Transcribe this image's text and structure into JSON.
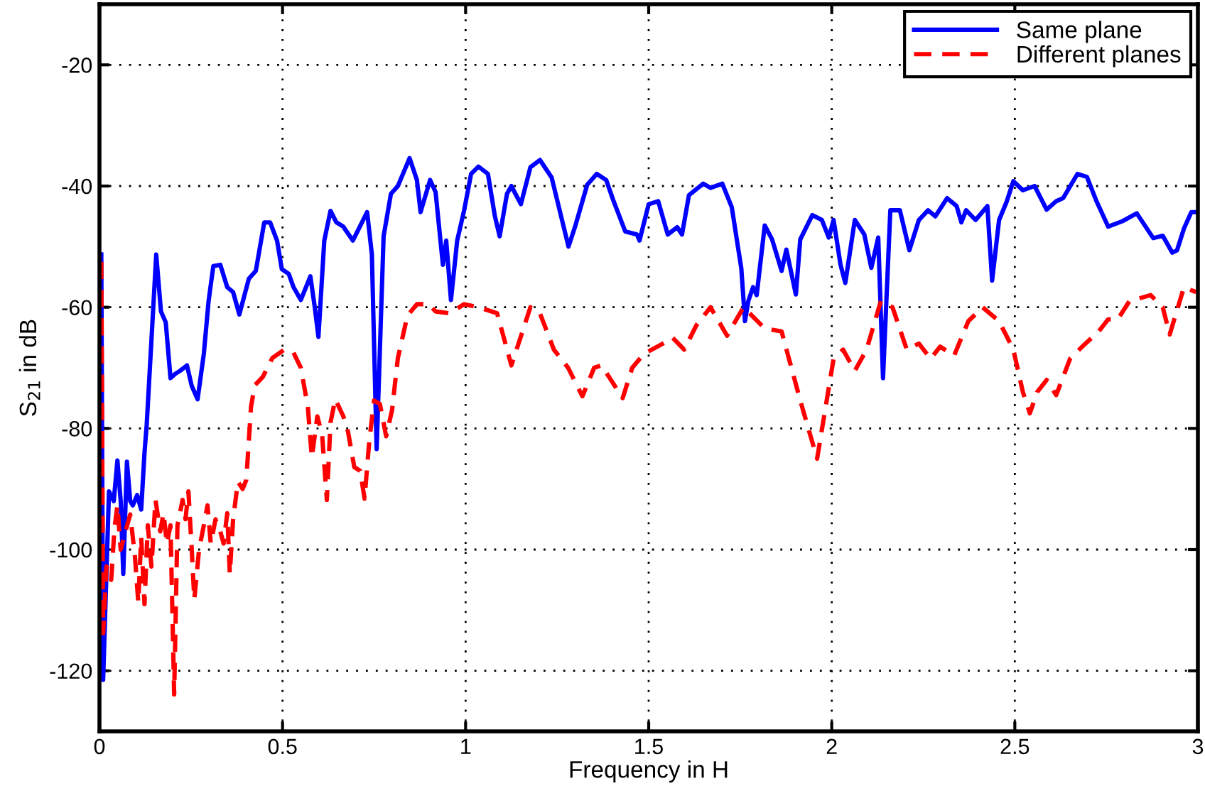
{
  "chart_data": {
    "type": "line",
    "xlabel": "Frequency in H",
    "ylabel": "S$_{21}$ in dB",
    "xlim": [
      0,
      3
    ],
    "ylim": [
      -130,
      -10
    ],
    "xticks": [
      0,
      0.5,
      1,
      1.5,
      2,
      2.5,
      3
    ],
    "yticks": [
      -120,
      -100,
      -80,
      -60,
      -40,
      -20
    ],
    "grid": true,
    "legend": "top right",
    "marker": "none",
    "series": [
      {
        "name": "Same plane",
        "color": "#0000ff",
        "line_style": "solid",
        "x": [
          0.005,
          0.01,
          0.026,
          0.039,
          0.049,
          0.058,
          0.065,
          0.075,
          0.084,
          0.091,
          0.103,
          0.114,
          0.123,
          0.129,
          0.142,
          0.155,
          0.168,
          0.181,
          0.194,
          0.207,
          0.22,
          0.239,
          0.252,
          0.268,
          0.285,
          0.298,
          0.311,
          0.33,
          0.349,
          0.365,
          0.382,
          0.408,
          0.427,
          0.45,
          0.466,
          0.485,
          0.498,
          0.517,
          0.53,
          0.55,
          0.576,
          0.588,
          0.598,
          0.614,
          0.631,
          0.647,
          0.666,
          0.692,
          0.731,
          0.744,
          0.757,
          0.776,
          0.796,
          0.815,
          0.847,
          0.867,
          0.877,
          0.903,
          0.918,
          0.938,
          0.947,
          0.96,
          0.977,
          0.996,
          1.015,
          1.035,
          1.061,
          1.08,
          1.093,
          1.113,
          1.125,
          1.151,
          1.177,
          1.203,
          1.235,
          1.281,
          1.3,
          1.332,
          1.358,
          1.384,
          1.403,
          1.436,
          1.468,
          1.475,
          1.5,
          1.526,
          1.552,
          1.578,
          1.591,
          1.61,
          1.649,
          1.669,
          1.701,
          1.727,
          1.746,
          1.753,
          1.763,
          1.772,
          1.785,
          1.795,
          1.817,
          1.837,
          1.863,
          1.876,
          1.902,
          1.914,
          1.947,
          1.973,
          1.992,
          2.005,
          2.024,
          2.037,
          2.063,
          2.089,
          2.108,
          2.127,
          2.14,
          2.16,
          2.186,
          2.212,
          2.238,
          2.263,
          2.283,
          2.315,
          2.341,
          2.354,
          2.367,
          2.393,
          2.425,
          2.438,
          2.457,
          2.477,
          2.496,
          2.522,
          2.554,
          2.587,
          2.613,
          2.632,
          2.671,
          2.697,
          2.723,
          2.755,
          2.794,
          2.833,
          2.878,
          2.904,
          2.93,
          2.943,
          2.962,
          2.982,
          2.995
        ],
        "values": [
          -51.3,
          -121.5,
          -90.4,
          -92,
          -85.3,
          -92,
          -104,
          -85.5,
          -92,
          -92.7,
          -91,
          -93.4,
          -84,
          -79.4,
          -65.4,
          -51.3,
          -60.7,
          -62.5,
          -71.7,
          -71,
          -70.5,
          -69.6,
          -73,
          -75.2,
          -67.7,
          -59,
          -53.2,
          -53,
          -56.7,
          -57.5,
          -61.2,
          -55.3,
          -54,
          -46,
          -46,
          -49,
          -53.7,
          -54.5,
          -56.7,
          -58.8,
          -54.9,
          -60,
          -64.9,
          -49,
          -44.1,
          -46,
          -46.7,
          -49,
          -44.3,
          -51.3,
          -83.4,
          -48.3,
          -41.3,
          -40,
          -35.4,
          -39,
          -44.3,
          -39,
          -41,
          -53,
          -49,
          -58.8,
          -49,
          -44,
          -38,
          -36.8,
          -38,
          -45,
          -48.3,
          -41.3,
          -40,
          -43,
          -36.9,
          -35.7,
          -38.6,
          -50,
          -46.5,
          -39.8,
          -38,
          -39,
          -42.3,
          -47.5,
          -48,
          -49,
          -43,
          -42.5,
          -48,
          -46.8,
          -48,
          -41.5,
          -39.6,
          -40.3,
          -39.6,
          -43.5,
          -50.9,
          -53.6,
          -62.3,
          -59,
          -56.7,
          -58,
          -46.5,
          -48.8,
          -54,
          -50.5,
          -57.9,
          -48.8,
          -44.8,
          -45.6,
          -48.5,
          -45.6,
          -53,
          -56,
          -45.6,
          -48,
          -53.5,
          -48.5,
          -71.7,
          -44,
          -44,
          -50.6,
          -45.6,
          -44,
          -45,
          -42,
          -43.3,
          -46,
          -44,
          -45.6,
          -43.3,
          -55.6,
          -45.6,
          -42.7,
          -39.2,
          -40.7,
          -40,
          -43.9,
          -42.5,
          -42,
          -38,
          -38.5,
          -42.5,
          -46.7,
          -45.8,
          -44.5,
          -48.6,
          -48.2,
          -51,
          -50.6,
          -47,
          -44.3,
          -44.3
        ]
      },
      {
        "name": "Different planes",
        "color": "#ff0000",
        "line_style": "dashed",
        "x": [
          0.005,
          0.01,
          0.019,
          0.032,
          0.041,
          0.049,
          0.058,
          0.071,
          0.084,
          0.097,
          0.106,
          0.114,
          0.123,
          0.132,
          0.142,
          0.153,
          0.166,
          0.175,
          0.184,
          0.194,
          0.204,
          0.213,
          0.227,
          0.235,
          0.243,
          0.252,
          0.259,
          0.272,
          0.285,
          0.295,
          0.304,
          0.317,
          0.33,
          0.339,
          0.349,
          0.356,
          0.365,
          0.378,
          0.391,
          0.401,
          0.414,
          0.424,
          0.446,
          0.472,
          0.505,
          0.53,
          0.55,
          0.569,
          0.58,
          0.595,
          0.608,
          0.621,
          0.631,
          0.644,
          0.666,
          0.679,
          0.696,
          0.712,
          0.724,
          0.737,
          0.75,
          0.766,
          0.783,
          0.799,
          0.815,
          0.841,
          0.867,
          0.899,
          0.918,
          0.957,
          0.996,
          1.035,
          1.086,
          1.125,
          1.177,
          1.203,
          1.241,
          1.28,
          1.319,
          1.351,
          1.371,
          1.397,
          1.429,
          1.455,
          1.487,
          1.539,
          1.565,
          1.597,
          1.63,
          1.669,
          1.714,
          1.759,
          1.817,
          1.863,
          1.914,
          1.96,
          2.005,
          2.031,
          2.063,
          2.095,
          2.134,
          2.166,
          2.205,
          2.238,
          2.27,
          2.296,
          2.334,
          2.373,
          2.412,
          2.457,
          2.496,
          2.522,
          2.541,
          2.561,
          2.587,
          2.613,
          2.651,
          2.684,
          2.729,
          2.755,
          2.781,
          2.813,
          2.871,
          2.904,
          2.923,
          2.962,
          2.995
        ],
        "values": [
          -52.5,
          -113.8,
          -102.8,
          -105,
          -96.5,
          -92.7,
          -100,
          -97,
          -94.2,
          -101.2,
          -108.7,
          -98,
          -109,
          -96,
          -102.8,
          -91.8,
          -97,
          -94,
          -99,
          -96,
          -123.9,
          -96,
          -91.8,
          -95,
          -90.4,
          -100,
          -108.2,
          -100,
          -96,
          -92.7,
          -99,
          -95,
          -97,
          -99,
          -94,
          -104,
          -95,
          -88.8,
          -90,
          -88.5,
          -76.4,
          -72.9,
          -71.5,
          -68.4,
          -67,
          -67.5,
          -70,
          -76.4,
          -84.8,
          -78,
          -81,
          -91.8,
          -79,
          -75.2,
          -78,
          -80.6,
          -86.4,
          -87,
          -91.6,
          -82,
          -75.4,
          -76,
          -81.3,
          -77,
          -68.4,
          -61.4,
          -59.5,
          -59.5,
          -60.7,
          -61,
          -59.5,
          -60,
          -61,
          -69.6,
          -60,
          -61,
          -67,
          -70,
          -74.7,
          -70,
          -69.6,
          -72,
          -75,
          -70,
          -67.7,
          -66,
          -65,
          -67,
          -63,
          -60,
          -64.7,
          -60,
          -63.5,
          -64,
          -75.4,
          -85,
          -68.5,
          -67,
          -70.5,
          -67,
          -59,
          -60,
          -67,
          -66,
          -68.5,
          -66.5,
          -68,
          -62.3,
          -60,
          -62.3,
          -67,
          -74,
          -77.5,
          -74,
          -72,
          -74.5,
          -68.5,
          -66.5,
          -64,
          -62,
          -62,
          -59,
          -58,
          -60,
          -64.5,
          -56.7,
          -57.5
        ]
      }
    ]
  }
}
